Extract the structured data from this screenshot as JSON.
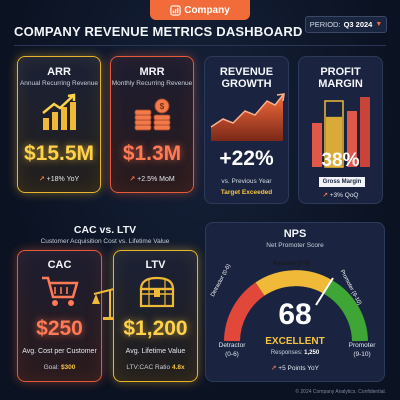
{
  "brand": {
    "name": "Company"
  },
  "header": {
    "title": "COMPANY REVENUE METRICS DASHBOARD",
    "period_label": "PERIOD:",
    "period_value": "Q3 2024"
  },
  "arr": {
    "title": "ARR",
    "subtitle": "Annual Recurring Revenue",
    "value": "$15.5M",
    "trend": "+18% YoY"
  },
  "mrr": {
    "title": "MRR",
    "subtitle": "Monthly Recurring Revenue",
    "value": "$1.3M",
    "trend": "+2.5% MoM"
  },
  "growth": {
    "title_line1": "REVENUE",
    "title_line2": "GROWTH",
    "value": "+22%",
    "caption": "vs. Previous Year",
    "status": "Target Exceeded"
  },
  "margin": {
    "title_line1": "PROFIT",
    "title_line2": "MARGIN",
    "value": "38%",
    "label": "Gross Margin",
    "trend": "+3% QoQ",
    "fill_fraction": 0.38
  },
  "cac_ltv": {
    "title": "CAC vs. LTV",
    "subtitle": "Customer Acquisition Cost vs. Lifetime Value",
    "cac": {
      "title": "CAC",
      "value": "$250",
      "caption": "Avg. Cost per Customer",
      "goal_label": "Goal:",
      "goal_value": "$300"
    },
    "ltv": {
      "title": "LTV",
      "value": "$1,200",
      "caption": "Avg. Lifetime Value",
      "ratio_label": "LTV:CAC Ratio",
      "ratio_value": "4.8x"
    }
  },
  "nps": {
    "title": "NPS",
    "subtitle": "Net Promoter Score",
    "score": "68",
    "rating": "EXCELLENT",
    "responses_label": "Responses:",
    "responses_value": "1,250",
    "trend": "+5 Points YoY",
    "detractor_label": "Detractor",
    "detractor_range": "(0-6)",
    "passive_label": "Passive (7-8)",
    "promoter_label": "Promoter",
    "promoter_range": "(9-10)",
    "arc_detractor": "Detractor (0-6)",
    "arc_promoter": "Promoter (9-10)"
  },
  "footer": {
    "text": "© 2024 Company Analytics. Confidential."
  },
  "colors": {
    "accent": "#f26b3a",
    "yellow": "#e8b42c",
    "red": "#e25a3a",
    "green": "#3fa535",
    "background": "#0d1526"
  }
}
